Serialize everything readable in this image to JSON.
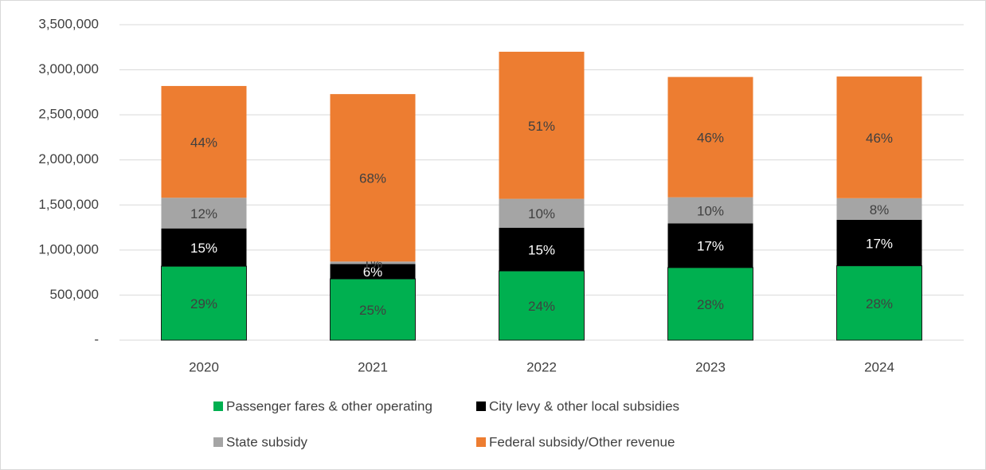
{
  "chart_data": {
    "type": "stacked_bar",
    "categories": [
      "2020",
      "2021",
      "2022",
      "2023",
      "2024"
    ],
    "series": [
      {
        "name": "Passenger fares & other operating",
        "color": "#00b050",
        "values": [
          820000,
          680000,
          768000,
          805000,
          825000
        ],
        "value_labels": [
          "29%",
          "25%",
          "24%",
          "28%",
          "28%"
        ]
      },
      {
        "name": "City levy & other local subsidies",
        "color": "#000000",
        "values": [
          420000,
          165000,
          480000,
          490000,
          510000
        ],
        "value_labels": [
          "15%",
          "6%",
          "15%",
          "17%",
          "17%"
        ]
      },
      {
        "name": "State subsidy",
        "color": "#a5a5a5",
        "values": [
          340000,
          27000,
          320000,
          290000,
          240000
        ],
        "value_labels": [
          "12%",
          "1%",
          "10%",
          "10%",
          "8%"
        ]
      },
      {
        "name": "Federal subsidy/Other revenue",
        "color": "#ed7d31",
        "values": [
          1240000,
          1858000,
          1632000,
          1335000,
          1350000
        ],
        "value_labels": [
          "44%",
          "68%",
          "51%",
          "46%",
          "46%"
        ]
      }
    ],
    "ylim": [
      0,
      3500000
    ],
    "yticks": [
      {
        "value": 0,
        "label": "-"
      },
      {
        "value": 500000,
        "label": "500,000"
      },
      {
        "value": 1000000,
        "label": "1,000,000"
      },
      {
        "value": 1500000,
        "label": "1,500,000"
      },
      {
        "value": 2000000,
        "label": "2,000,000"
      },
      {
        "value": 2500000,
        "label": "2,500,000"
      },
      {
        "value": 3000000,
        "label": "3,000,000"
      },
      {
        "value": 3500000,
        "label": "3,500,000"
      }
    ],
    "grid": true
  }
}
